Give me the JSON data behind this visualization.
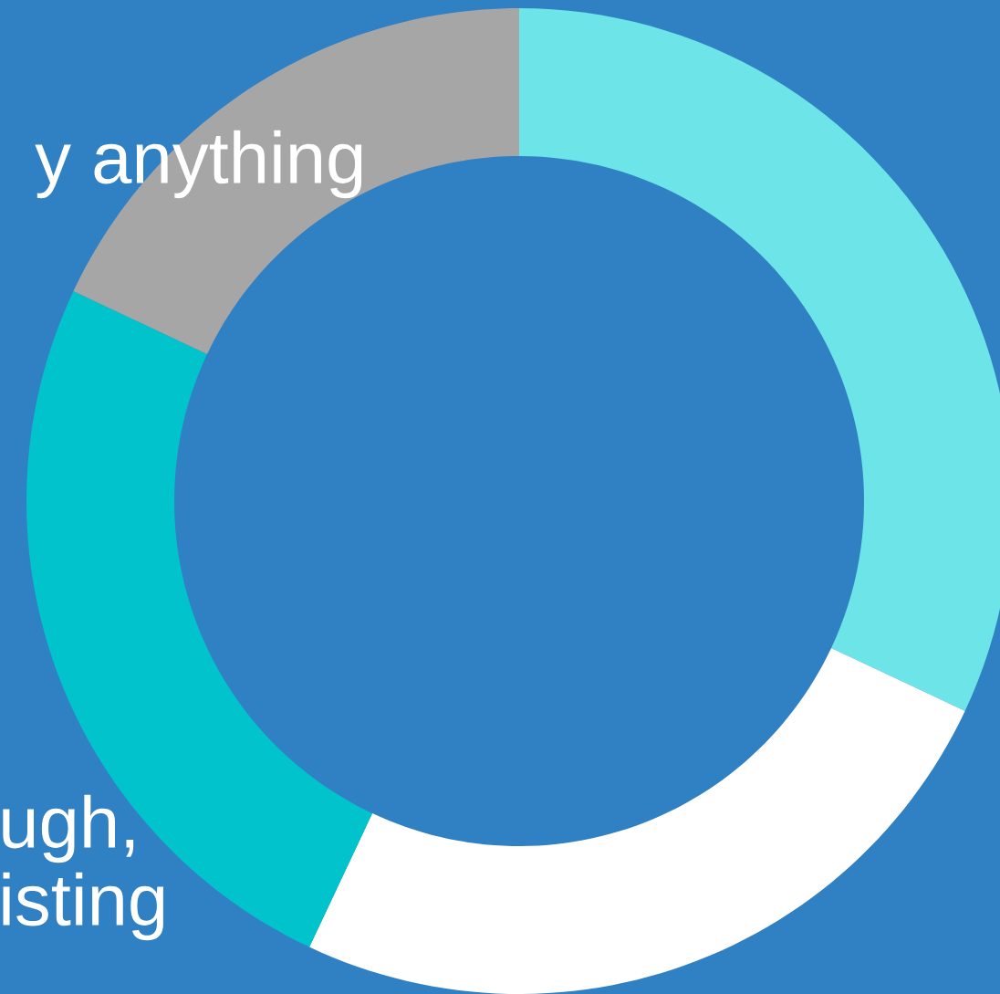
{
  "chart_data": {
    "type": "donut",
    "categories": [
      null,
      null,
      null,
      null
    ],
    "values": [
      32,
      25,
      25,
      18
    ],
    "colors": [
      "#6ce4e8",
      "#ffffff",
      "#00c3cc",
      "#a6a6a6"
    ],
    "annotations": [
      "y anything",
      "ugh,",
      "isting"
    ]
  }
}
